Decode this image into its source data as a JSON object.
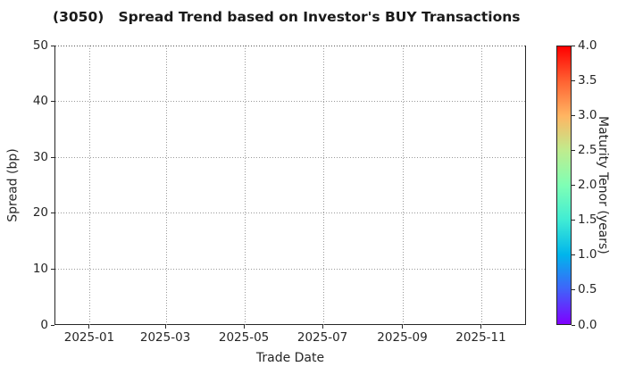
{
  "chart_data": {
    "type": "scatter",
    "title": "(3050)   Spread Trend based on Investor's BUY Transactions",
    "xlabel": "Trade Date",
    "ylabel": "Spread (bp)",
    "xlim": [
      "2024-12-05",
      "2025-12-06"
    ],
    "ylim": [
      0,
      50
    ],
    "x_ticks": [
      "2025-01",
      "2025-03",
      "2025-05",
      "2025-07",
      "2025-09",
      "2025-11"
    ],
    "y_ticks": [
      0,
      10,
      20,
      30,
      40,
      50
    ],
    "grid": "dotted",
    "legend": "none",
    "points": [],
    "colorbar": {
      "label": "Maturity Tenor (years)",
      "min": 0.0,
      "max": 4.0,
      "ticks": [
        "0.0",
        "0.5",
        "1.0",
        "1.5",
        "2.0",
        "2.5",
        "3.0",
        "3.5",
        "4.0"
      ],
      "colormap": "rainbow",
      "gradient_stops": [
        {
          "pos": 0.0,
          "color": "#7f00ff"
        },
        {
          "pos": 0.125,
          "color": "#4062fa"
        },
        {
          "pos": 0.25,
          "color": "#00b5ec"
        },
        {
          "pos": 0.375,
          "color": "#40ecd4"
        },
        {
          "pos": 0.5,
          "color": "#7fffb5"
        },
        {
          "pos": 0.625,
          "color": "#bfec8e"
        },
        {
          "pos": 0.75,
          "color": "#ffb562"
        },
        {
          "pos": 0.875,
          "color": "#ff6232"
        },
        {
          "pos": 1.0,
          "color": "#ff0000"
        }
      ]
    }
  },
  "colors": {
    "text": "#262626",
    "title_text": "#1a1a1a",
    "spine": "#262626",
    "grid": "#999999",
    "background": "#ffffff"
  }
}
